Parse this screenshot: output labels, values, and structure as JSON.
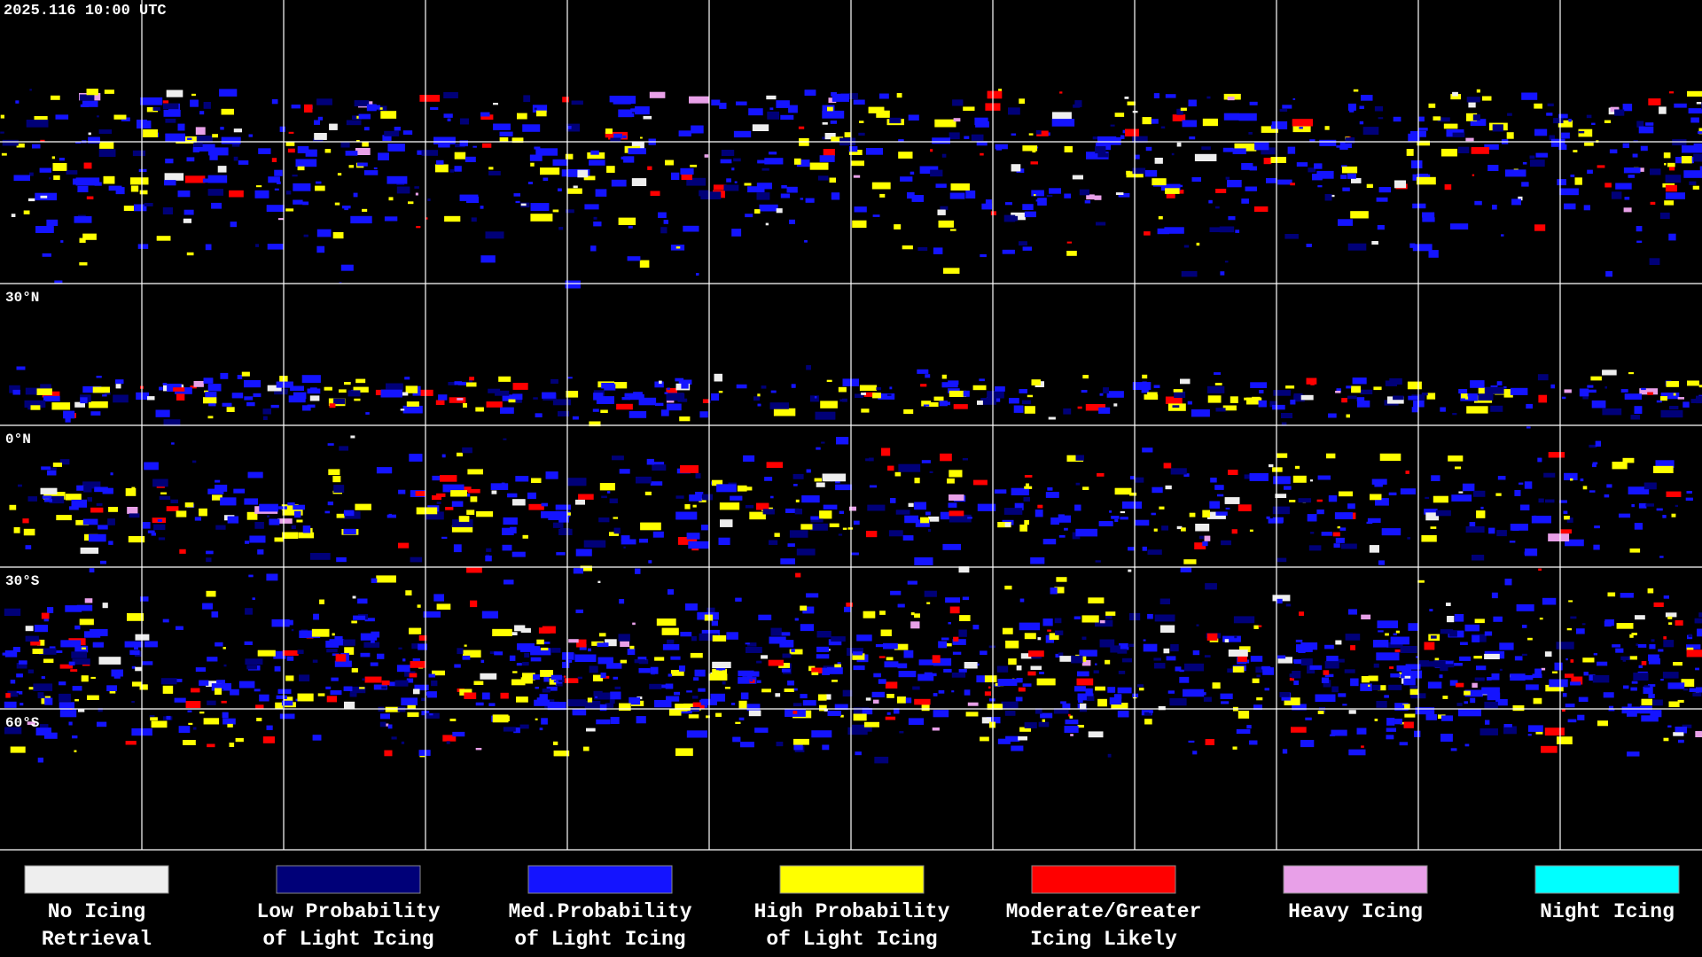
{
  "header": {
    "timestamp": "2025.116 10:00 UTC"
  },
  "map": {
    "latitude_labels": [
      "30°N",
      "0°N",
      "30°S",
      "60°S"
    ]
  },
  "legend": [
    {
      "label_lines": [
        "No Icing",
        "Retrieval"
      ],
      "color": "#eeeeee"
    },
    {
      "label_lines": [
        "Low Probability",
        "of Light Icing"
      ],
      "color": "#000078"
    },
    {
      "label_lines": [
        "Med.Probability",
        "of Light Icing"
      ],
      "color": "#1414ff"
    },
    {
      "label_lines": [
        "High Probability",
        "of Light Icing"
      ],
      "color": "#ffff00"
    },
    {
      "label_lines": [
        "Moderate/Greater",
        "Icing Likely"
      ],
      "color": "#ff0000"
    },
    {
      "label_lines": [
        "Heavy Icing"
      ],
      "color": "#e8a0e8"
    },
    {
      "label_lines": [
        "Night Icing"
      ],
      "color": "#00ffff"
    }
  ]
}
